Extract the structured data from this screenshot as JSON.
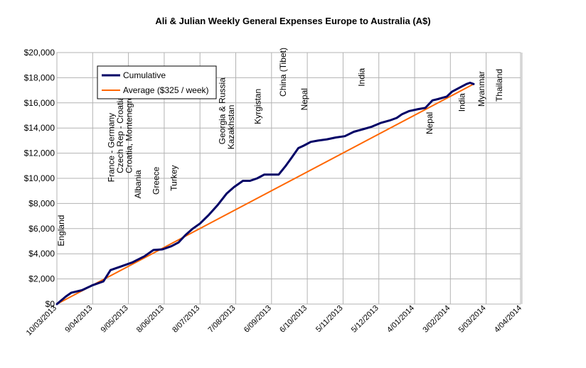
{
  "chart_data": {
    "type": "line",
    "title": "Ali & Julian Weekly General Expenses Europe to Australia  (A$)",
    "xlabel": "",
    "ylabel": "",
    "ylim": [
      0,
      20000
    ],
    "yticks": [
      "$0",
      "$2,000",
      "$4,000",
      "$6,000",
      "$8,000",
      "$10,000",
      "$12,000",
      "$14,000",
      "$16,000",
      "$18,000",
      "$20,000"
    ],
    "x_tick_labels": [
      "10/03/2013",
      "9/04/2013",
      "9/05/2013",
      "8/06/2013",
      "8/07/2013",
      "7/08/2013",
      "6/09/2013",
      "6/10/2013",
      "5/11/2013",
      "5/12/2013",
      "4/01/2014",
      "3/02/2014",
      "5/03/2014",
      "4/04/2014"
    ],
    "grid": true,
    "legend_position": "top-left",
    "series": [
      {
        "name": "Cumulative",
        "color": "#000066",
        "points": [
          [
            0,
            0
          ],
          [
            0.25,
            600
          ],
          [
            0.4,
            900
          ],
          [
            0.7,
            1100
          ],
          [
            1.0,
            1500
          ],
          [
            1.3,
            1800
          ],
          [
            1.5,
            2700
          ],
          [
            1.8,
            3000
          ],
          [
            2.1,
            3300
          ],
          [
            2.45,
            3800
          ],
          [
            2.7,
            4300
          ],
          [
            2.95,
            4350
          ],
          [
            3.2,
            4600
          ],
          [
            3.4,
            4900
          ],
          [
            3.6,
            5500
          ],
          [
            3.8,
            6000
          ],
          [
            4.0,
            6400
          ],
          [
            4.25,
            7100
          ],
          [
            4.5,
            7900
          ],
          [
            4.75,
            8800
          ],
          [
            4.95,
            9300
          ],
          [
            5.2,
            9800
          ],
          [
            5.4,
            9800
          ],
          [
            5.6,
            10000
          ],
          [
            5.8,
            10300
          ],
          [
            6.0,
            10300
          ],
          [
            6.2,
            10300
          ],
          [
            6.4,
            11000
          ],
          [
            6.55,
            11600
          ],
          [
            6.75,
            12400
          ],
          [
            6.9,
            12600
          ],
          [
            7.1,
            12900
          ],
          [
            7.3,
            13000
          ],
          [
            7.55,
            13100
          ],
          [
            7.8,
            13250
          ],
          [
            8.05,
            13350
          ],
          [
            8.3,
            13700
          ],
          [
            8.55,
            13900
          ],
          [
            8.8,
            14100
          ],
          [
            9.05,
            14400
          ],
          [
            9.3,
            14600
          ],
          [
            9.5,
            14800
          ],
          [
            9.65,
            15100
          ],
          [
            9.85,
            15350
          ],
          [
            10.1,
            15500
          ],
          [
            10.3,
            15600
          ],
          [
            10.5,
            16200
          ],
          [
            10.65,
            16300
          ],
          [
            10.9,
            16500
          ],
          [
            11.05,
            16900
          ],
          [
            11.25,
            17200
          ],
          [
            11.45,
            17500
          ],
          [
            11.55,
            17600
          ],
          [
            11.65,
            17500
          ]
        ]
      },
      {
        "name": "Average ($325 / week)",
        "color": "#ff6600",
        "points": [
          [
            0,
            0
          ],
          [
            11.65,
            17500
          ]
        ]
      }
    ],
    "annotations": [
      {
        "text": "England",
        "x": 0.2,
        "y": 4600
      },
      {
        "text": "France - Germany",
        "x": 1.6,
        "y": 9700
      },
      {
        "text": "Czech Rep - Croatia",
        "x": 1.85,
        "y": 10400
      },
      {
        "text": "Croatia, Montenegro",
        "x": 2.1,
        "y": 10400
      },
      {
        "text": "Albania",
        "x": 2.35,
        "y": 8400
      },
      {
        "text": "Greece",
        "x": 2.85,
        "y": 8700
      },
      {
        "text": "Turkey",
        "x": 3.35,
        "y": 9000
      },
      {
        "text": "Georgia & Russia",
        "x": 4.7,
        "y": 12700
      },
      {
        "text": "Kazakhstan",
        "x": 4.95,
        "y": 12300
      },
      {
        "text": "Kyrgistan",
        "x": 5.7,
        "y": 14300
      },
      {
        "text": "China (Tibet)",
        "x": 6.4,
        "y": 16500
      },
      {
        "text": "Nepal",
        "x": 7.0,
        "y": 15400
      },
      {
        "text": "India",
        "x": 8.6,
        "y": 17300
      },
      {
        "text": "Nepal",
        "x": 10.5,
        "y": 13500
      },
      {
        "text": "India",
        "x": 11.4,
        "y": 15300
      },
      {
        "text": "Myanmar",
        "x": 11.95,
        "y": 15700
      },
      {
        "text": "Thailand",
        "x": 12.45,
        "y": 16100
      }
    ]
  }
}
